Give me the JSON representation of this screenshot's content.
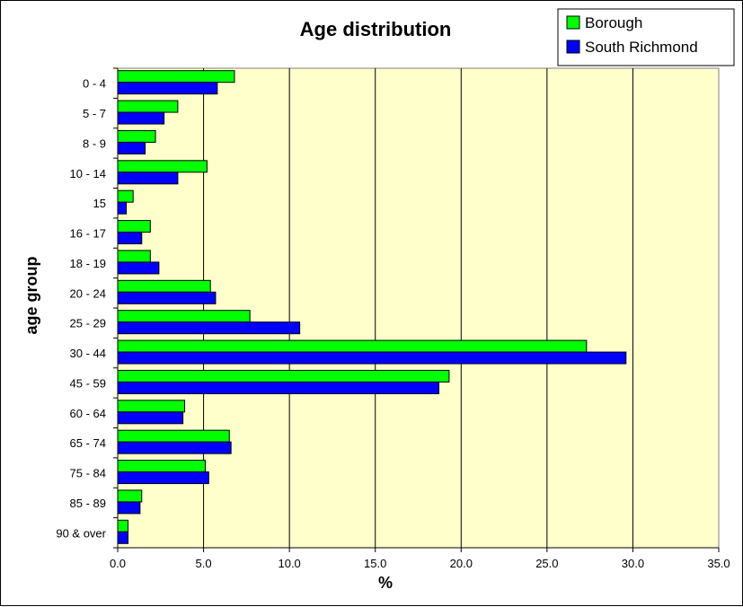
{
  "chart_data": {
    "type": "bar",
    "orientation": "horizontal",
    "title": "Age distribution",
    "xlabel": "%",
    "ylabel": "age group",
    "xlim": [
      0,
      35
    ],
    "x_ticks": [
      "0.0",
      "5.0",
      "10.0",
      "15.0",
      "20.0",
      "25.0",
      "30.0",
      "35.0"
    ],
    "grid": "vertical",
    "legend_position": "top-right",
    "categories": [
      "0 - 4",
      "5 - 7",
      "8 - 9",
      "10 - 14",
      "15",
      "16 - 17",
      "18 - 19",
      "20 - 24",
      "25 - 29",
      "30 - 44",
      "45 - 59",
      "60 - 64",
      "65 - 74",
      "75 - 84",
      "85 - 89",
      "90 & over"
    ],
    "series": [
      {
        "name": "Borough",
        "color": "#00ff00",
        "values": [
          6.8,
          3.5,
          2.2,
          5.2,
          0.9,
          1.9,
          1.9,
          5.4,
          7.7,
          27.3,
          19.3,
          3.9,
          6.5,
          5.1,
          1.4,
          0.6
        ]
      },
      {
        "name": "South Richmond",
        "color": "#0000ff",
        "values": [
          5.8,
          2.7,
          1.6,
          3.5,
          0.5,
          1.4,
          2.4,
          5.7,
          10.6,
          29.6,
          18.7,
          3.8,
          6.6,
          5.3,
          1.3,
          0.6
        ]
      }
    ],
    "colors": {
      "plot_background": "#ffffcc",
      "gridline": "#000000"
    }
  }
}
